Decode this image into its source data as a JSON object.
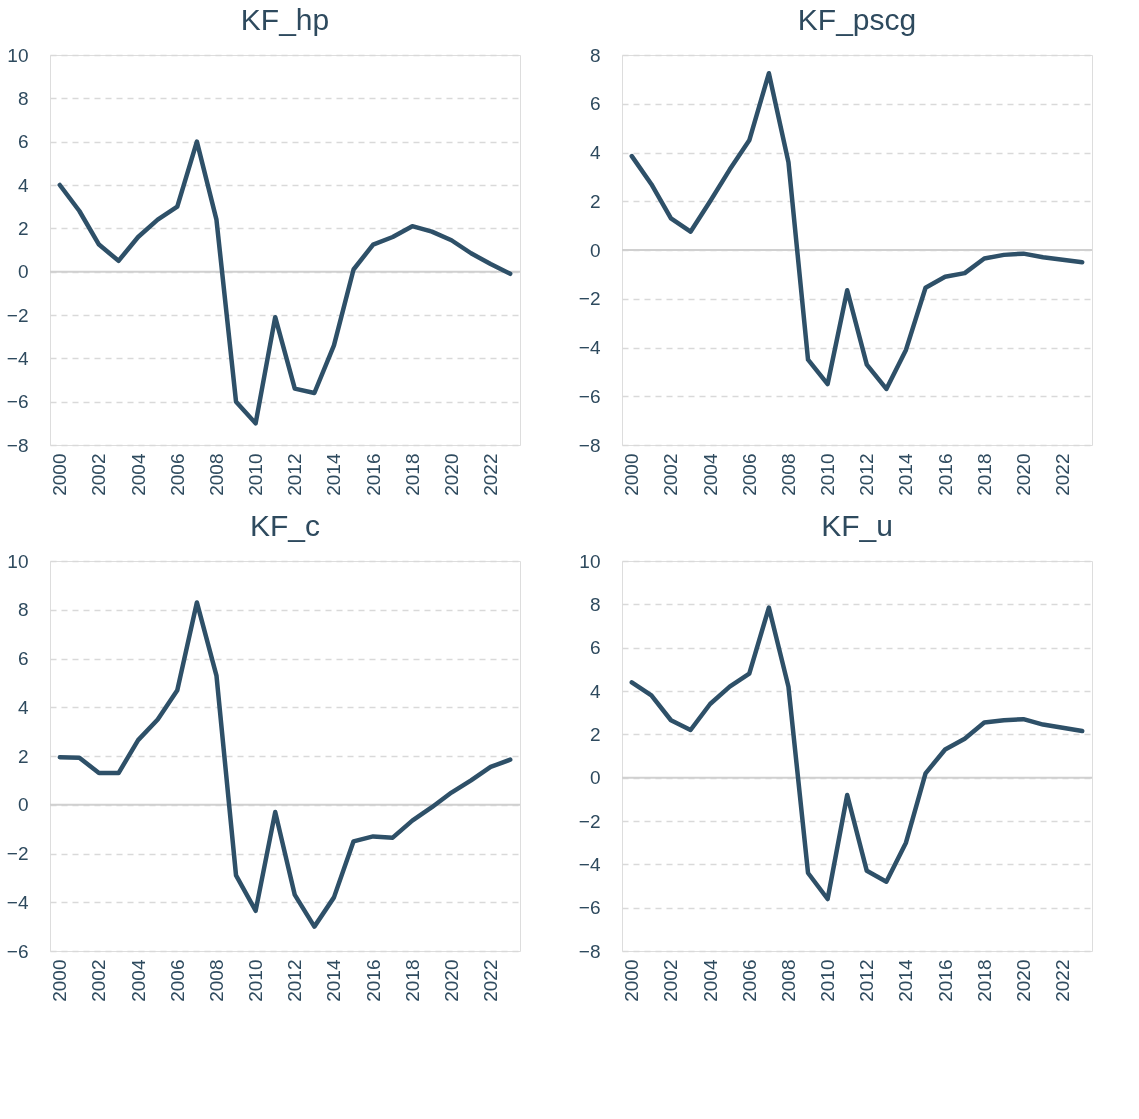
{
  "chart_data": [
    {
      "type": "line",
      "title": "KF_hp",
      "categories": [
        "2000",
        null,
        "2002",
        null,
        "2004",
        null,
        "2006",
        null,
        "2008",
        null,
        "2010",
        null,
        "2012",
        null,
        "2014",
        null,
        "2016",
        null,
        "2018",
        null,
        "2020",
        null,
        "2022",
        null
      ],
      "series": [
        {
          "color": "#2e5068",
          "values": [
            4.0,
            2.8,
            1.25,
            0.5,
            1.6,
            2.4,
            3.0,
            6.0,
            2.4,
            -6.0,
            -7.0,
            -2.1,
            -5.4,
            -5.6,
            -3.4,
            0.1,
            1.25,
            1.6,
            2.1,
            1.85,
            1.45,
            0.85,
            0.35,
            -0.1
          ]
        }
      ],
      "ylim": [
        -8,
        10
      ],
      "yticks": [
        -8,
        -6,
        -4,
        -2,
        0,
        2,
        4,
        6,
        8,
        10
      ],
      "grid": "y",
      "ref_lines": [
        {
          "axis": "y",
          "value": 0,
          "line_style": "solid"
        }
      ]
    },
    {
      "type": "line",
      "title": "KF_pscg",
      "categories": [
        "2000",
        null,
        "2002",
        null,
        "2004",
        null,
        "2006",
        null,
        "2008",
        null,
        "2010",
        null,
        "2012",
        null,
        "2014",
        null,
        "2016",
        null,
        "2018",
        null,
        "2020",
        null,
        "2022",
        null
      ],
      "series": [
        {
          "color": "#2e5068",
          "values": [
            3.85,
            2.7,
            1.3,
            0.75,
            2.0,
            3.3,
            4.5,
            7.25,
            3.6,
            -4.5,
            -5.5,
            -1.65,
            -4.7,
            -5.7,
            -4.1,
            -1.55,
            -1.1,
            -0.95,
            -0.35,
            -0.2,
            -0.15,
            -0.3,
            -0.4,
            -0.5
          ]
        }
      ],
      "ylim": [
        -8,
        8
      ],
      "yticks": [
        -8,
        -6,
        -4,
        -2,
        0,
        2,
        4,
        6,
        8
      ],
      "grid": "y",
      "ref_lines": [
        {
          "axis": "y",
          "value": 0,
          "line_style": "solid"
        }
      ]
    },
    {
      "type": "line",
      "title": "KF_c",
      "categories": [
        "2000",
        null,
        "2002",
        null,
        "2004",
        null,
        "2006",
        null,
        "2008",
        null,
        "2010",
        null,
        "2012",
        null,
        "2014",
        null,
        "2016",
        null,
        "2018",
        null,
        "2020",
        null,
        "2022",
        null
      ],
      "series": [
        {
          "color": "#2e5068",
          "values": [
            1.95,
            1.93,
            1.3,
            1.3,
            2.65,
            3.5,
            4.7,
            8.3,
            5.3,
            -2.9,
            -4.35,
            -0.3,
            -3.7,
            -5.0,
            -3.8,
            -1.5,
            -1.3,
            -1.35,
            -0.65,
            -0.1,
            0.5,
            1.0,
            1.55,
            1.85
          ]
        }
      ],
      "ylim": [
        -6,
        10
      ],
      "yticks": [
        -6,
        -4,
        -2,
        0,
        2,
        4,
        6,
        8,
        10
      ],
      "grid": "y",
      "ref_lines": [
        {
          "axis": "y",
          "value": 0,
          "line_style": "solid"
        }
      ]
    },
    {
      "type": "line",
      "title": "KF_u",
      "categories": [
        "2000",
        null,
        "2002",
        null,
        "2004",
        null,
        "2006",
        null,
        "2008",
        null,
        "2010",
        null,
        "2012",
        null,
        "2014",
        null,
        "2016",
        null,
        "2018",
        null,
        "2020",
        null,
        "2022",
        null
      ],
      "series": [
        {
          "color": "#2e5068",
          "values": [
            4.4,
            3.8,
            2.65,
            2.2,
            3.4,
            4.2,
            4.8,
            7.85,
            4.2,
            -4.4,
            -5.6,
            -0.8,
            -4.3,
            -4.8,
            -3.0,
            0.2,
            1.3,
            1.8,
            2.55,
            2.65,
            2.7,
            2.45,
            2.3,
            2.15
          ]
        }
      ],
      "ylim": [
        -8,
        10
      ],
      "yticks": [
        -8,
        -6,
        -4,
        -2,
        0,
        2,
        4,
        6,
        8,
        10
      ],
      "grid": "y",
      "ref_lines": [
        {
          "axis": "y",
          "value": 0,
          "line_style": "solid"
        }
      ]
    }
  ]
}
